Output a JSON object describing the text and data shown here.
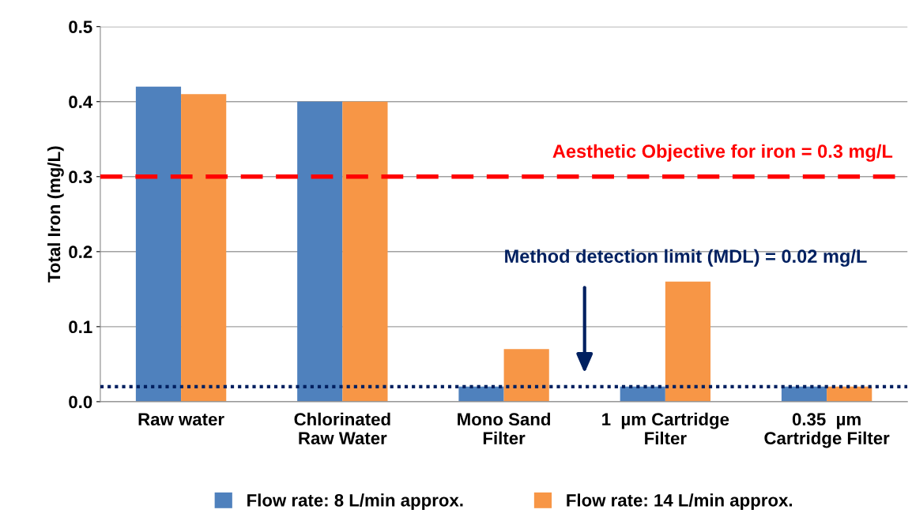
{
  "chart_data": {
    "type": "bar",
    "ylabel": "Total Iron (mg/L)",
    "categories": [
      "Raw water",
      "Chlorinated\nRaw Water",
      "Mono Sand\nFilter",
      "1  µm Cartridge\nFilter",
      "0.35  µm\nCartridge Filter"
    ],
    "series": [
      {
        "name": "Flow rate: 8 L/min approx.",
        "color": "#4f81bd",
        "values": [
          0.42,
          0.4,
          0.02,
          0.02,
          0.02
        ]
      },
      {
        "name": "Flow rate: 14 L/min approx.",
        "color": "#f79646",
        "values": [
          0.41,
          0.4,
          0.07,
          0.16,
          0.02
        ]
      }
    ],
    "ylim": [
      0,
      0.5
    ],
    "yticks": [
      {
        "value": 0,
        "label": "0.0"
      },
      {
        "value": 0.1,
        "label": "0.1"
      },
      {
        "value": 0.2,
        "label": "0.2"
      },
      {
        "value": 0.3,
        "label": "0.3"
      },
      {
        "value": 0.4,
        "label": "0.4"
      },
      {
        "value": 0.5,
        "label": "0.5"
      }
    ],
    "ref_lines": [
      {
        "axis": "y",
        "value": 0.3,
        "label": "Aesthetic Objective for iron = 0.3 mg/L",
        "color": "#ff0000",
        "line_style": "dashed"
      },
      {
        "axis": "y",
        "value": 0.02,
        "label": "Method detection limit (MDL) = 0.02 mg/L",
        "color": "#002060",
        "line_style": "dotted"
      }
    ],
    "grid": "y",
    "legend": "bottom"
  }
}
